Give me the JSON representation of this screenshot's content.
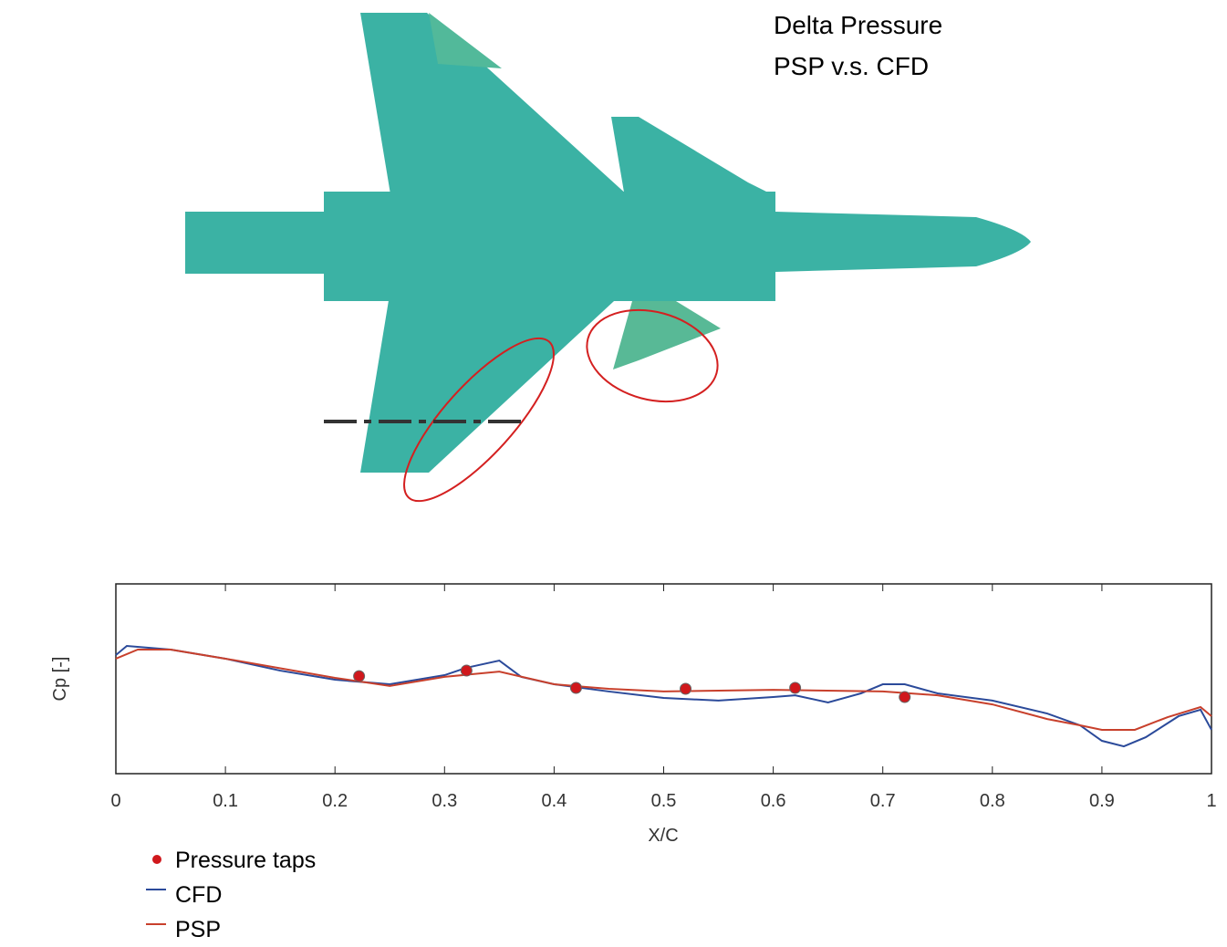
{
  "chart_data": {
    "type": "line",
    "title": "Delta Pressure",
    "subtitle": "PSP v.s. CFD",
    "xlabel": "X/C",
    "ylabel": "Cp [-]",
    "xlim": [
      0,
      1
    ],
    "xticks": [
      0,
      0.1,
      0.2,
      0.3,
      0.4,
      0.5,
      0.6,
      0.7,
      0.8,
      0.9,
      1
    ],
    "ylim": [
      0,
      1
    ],
    "series": [
      {
        "name": "Pressure taps",
        "kind": "scatter",
        "color": "#d0181c",
        "x": [
          0.222,
          0.32,
          0.42,
          0.52,
          0.62,
          0.72
        ],
        "values": [
          0.514,
          0.543,
          0.452,
          0.447,
          0.452,
          0.404
        ]
      },
      {
        "name": "CFD",
        "kind": "line",
        "color": "#2b4a9a",
        "x": [
          0,
          0.01,
          0.05,
          0.1,
          0.15,
          0.2,
          0.25,
          0.3,
          0.32,
          0.35,
          0.37,
          0.4,
          0.45,
          0.5,
          0.55,
          0.6,
          0.62,
          0.65,
          0.68,
          0.7,
          0.72,
          0.75,
          0.8,
          0.85,
          0.88,
          0.9,
          0.92,
          0.94,
          0.97,
          0.99,
          1
        ],
        "values": [
          0.625,
          0.673,
          0.654,
          0.606,
          0.543,
          0.495,
          0.471,
          0.519,
          0.558,
          0.596,
          0.51,
          0.471,
          0.433,
          0.399,
          0.385,
          0.404,
          0.413,
          0.375,
          0.423,
          0.471,
          0.471,
          0.423,
          0.385,
          0.317,
          0.255,
          0.173,
          0.144,
          0.192,
          0.303,
          0.337,
          0.231
        ]
      },
      {
        "name": "PSP",
        "kind": "line",
        "color": "#c8402c",
        "x": [
          0,
          0.02,
          0.05,
          0.1,
          0.2,
          0.25,
          0.3,
          0.35,
          0.4,
          0.45,
          0.5,
          0.6,
          0.7,
          0.75,
          0.8,
          0.85,
          0.88,
          0.9,
          0.93,
          0.96,
          0.99,
          1
        ],
        "values": [
          0.606,
          0.654,
          0.654,
          0.606,
          0.505,
          0.462,
          0.51,
          0.538,
          0.471,
          0.447,
          0.433,
          0.442,
          0.433,
          0.413,
          0.365,
          0.288,
          0.255,
          0.231,
          0.231,
          0.298,
          0.351,
          0.303
        ]
      }
    ]
  }
}
